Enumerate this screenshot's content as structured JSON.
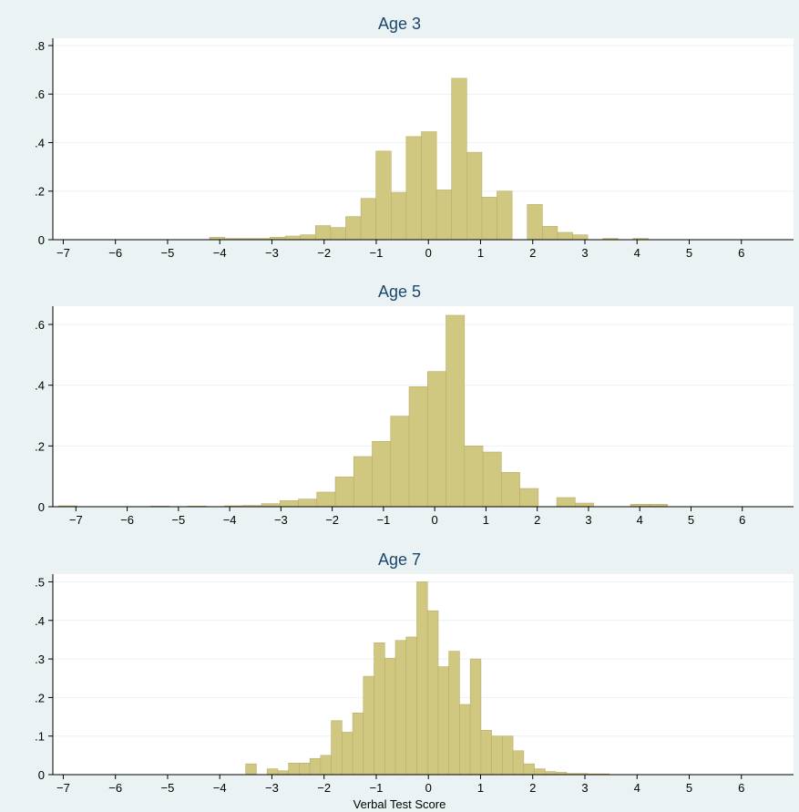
{
  "style": {
    "bar_fill": "#d0c881",
    "bar_stroke": "#b8ad67",
    "plot_bg": "#ffffff",
    "outer_bg": "#eaf2f3",
    "title_color": "#1a476f",
    "grid_color": "#eaf2f3"
  },
  "x_label": "Verbal Test Score",
  "chart_data": [
    {
      "type": "bar",
      "title": "Age 3",
      "xlim": [
        -7.2,
        7
      ],
      "ylim": [
        0,
        0.83
      ],
      "yticks": [
        0,
        0.2,
        0.4,
        0.6,
        0.8
      ],
      "ytick_labels": [
        "0",
        ".2",
        ".4",
        ".6",
        ".8"
      ],
      "xticks": [
        -7,
        -6,
        -5,
        -4,
        -3,
        -2,
        -1,
        0,
        1,
        2,
        3,
        4,
        5,
        6
      ],
      "xtick_labels": [
        "−7",
        "−6",
        "−5",
        "−4",
        "−3",
        "−2",
        "−1",
        "0",
        "1",
        "2",
        "3",
        "4",
        "5",
        "6"
      ],
      "bin_width": 0.29,
      "bins": [
        {
          "x": -4.05,
          "y": 0.01
        },
        {
          "x": -3.76,
          "y": 0.005
        },
        {
          "x": -3.47,
          "y": 0.005
        },
        {
          "x": -3.18,
          "y": 0.005
        },
        {
          "x": -2.89,
          "y": 0.01
        },
        {
          "x": -2.6,
          "y": 0.015
        },
        {
          "x": -2.31,
          "y": 0.02
        },
        {
          "x": -2.02,
          "y": 0.058
        },
        {
          "x": -1.73,
          "y": 0.05
        },
        {
          "x": -1.44,
          "y": 0.095
        },
        {
          "x": -1.15,
          "y": 0.17
        },
        {
          "x": -0.86,
          "y": 0.365
        },
        {
          "x": -0.57,
          "y": 0.195
        },
        {
          "x": -0.28,
          "y": 0.425
        },
        {
          "x": 0.01,
          "y": 0.445
        },
        {
          "x": 0.3,
          "y": 0.205
        },
        {
          "x": 0.59,
          "y": 0.665
        },
        {
          "x": 0.88,
          "y": 0.36
        },
        {
          "x": 1.17,
          "y": 0.175
        },
        {
          "x": 1.46,
          "y": 0.2
        },
        {
          "x": 2.04,
          "y": 0.145
        },
        {
          "x": 2.33,
          "y": 0.055
        },
        {
          "x": 2.62,
          "y": 0.03
        },
        {
          "x": 2.91,
          "y": 0.02
        },
        {
          "x": 3.49,
          "y": 0.005
        },
        {
          "x": 4.07,
          "y": 0.005
        }
      ]
    },
    {
      "type": "bar",
      "title": "Age 5",
      "xlim": [
        -7.45,
        7
      ],
      "ylim": [
        0,
        0.66
      ],
      "yticks": [
        0,
        0.2,
        0.4,
        0.6
      ],
      "ytick_labels": [
        "0",
        ".2",
        ".4",
        ".6"
      ],
      "xticks": [
        -7,
        -6,
        -5,
        -4,
        -3,
        -2,
        -1,
        0,
        1,
        2,
        3,
        4,
        5,
        6
      ],
      "xtick_labels": [
        "−7",
        "−6",
        "−5",
        "−4",
        "−3",
        "−2",
        "−1",
        "0",
        "1",
        "2",
        "3",
        "4",
        "5",
        "6"
      ],
      "bin_width": 0.36,
      "bins": [
        {
          "x": -7.16,
          "y": 0.003
        },
        {
          "x": -5.36,
          "y": 0.002
        },
        {
          "x": -4.64,
          "y": 0.002
        },
        {
          "x": -3.92,
          "y": 0.003
        },
        {
          "x": -3.56,
          "y": 0.004
        },
        {
          "x": -3.2,
          "y": 0.01
        },
        {
          "x": -2.84,
          "y": 0.02
        },
        {
          "x": -2.48,
          "y": 0.025
        },
        {
          "x": -2.12,
          "y": 0.048
        },
        {
          "x": -1.76,
          "y": 0.098
        },
        {
          "x": -1.4,
          "y": 0.165
        },
        {
          "x": -1.04,
          "y": 0.215
        },
        {
          "x": -0.68,
          "y": 0.298
        },
        {
          "x": -0.32,
          "y": 0.395
        },
        {
          "x": 0.04,
          "y": 0.445
        },
        {
          "x": 0.4,
          "y": 0.63
        },
        {
          "x": 0.76,
          "y": 0.2
        },
        {
          "x": 1.12,
          "y": 0.18
        },
        {
          "x": 1.48,
          "y": 0.113
        },
        {
          "x": 1.84,
          "y": 0.06
        },
        {
          "x": 2.56,
          "y": 0.03
        },
        {
          "x": 2.92,
          "y": 0.012
        },
        {
          "x": 4.0,
          "y": 0.008
        },
        {
          "x": 4.36,
          "y": 0.008
        }
      ]
    },
    {
      "type": "bar",
      "title": "Age 7",
      "xlim": [
        -7.2,
        7
      ],
      "ylim": [
        0,
        0.52
      ],
      "yticks": [
        0,
        0.1,
        0.2,
        0.3,
        0.4,
        0.5
      ],
      "ytick_labels": [
        "0",
        ".1",
        ".2",
        ".3",
        ".4",
        ".5"
      ],
      "xticks": [
        -7,
        -6,
        -5,
        -4,
        -3,
        -2,
        -1,
        0,
        1,
        2,
        3,
        4,
        5,
        6
      ],
      "xtick_labels": [
        "−7",
        "−6",
        "−5",
        "−4",
        "−3",
        "−2",
        "−1",
        "0",
        "1",
        "2",
        "3",
        "4",
        "5",
        "6"
      ],
      "bin_width": 0.205,
      "bins": [
        {
          "x": -3.4,
          "y": 0.028
        },
        {
          "x": -2.99,
          "y": 0.015
        },
        {
          "x": -2.785,
          "y": 0.01
        },
        {
          "x": -2.58,
          "y": 0.03
        },
        {
          "x": -2.375,
          "y": 0.03
        },
        {
          "x": -2.17,
          "y": 0.042
        },
        {
          "x": -1.965,
          "y": 0.05
        },
        {
          "x": -1.76,
          "y": 0.14
        },
        {
          "x": -1.555,
          "y": 0.11
        },
        {
          "x": -1.35,
          "y": 0.16
        },
        {
          "x": -1.145,
          "y": 0.255
        },
        {
          "x": -0.94,
          "y": 0.342
        },
        {
          "x": -0.735,
          "y": 0.302
        },
        {
          "x": -0.53,
          "y": 0.348
        },
        {
          "x": -0.325,
          "y": 0.357
        },
        {
          "x": -0.12,
          "y": 0.5
        },
        {
          "x": 0.085,
          "y": 0.425
        },
        {
          "x": 0.29,
          "y": 0.28
        },
        {
          "x": 0.495,
          "y": 0.32
        },
        {
          "x": 0.7,
          "y": 0.182
        },
        {
          "x": 0.905,
          "y": 0.3
        },
        {
          "x": 1.11,
          "y": 0.115
        },
        {
          "x": 1.315,
          "y": 0.1
        },
        {
          "x": 1.52,
          "y": 0.1
        },
        {
          "x": 1.725,
          "y": 0.062
        },
        {
          "x": 1.93,
          "y": 0.028
        },
        {
          "x": 2.135,
          "y": 0.015
        },
        {
          "x": 2.34,
          "y": 0.008
        },
        {
          "x": 2.545,
          "y": 0.006
        },
        {
          "x": 2.75,
          "y": 0.003
        },
        {
          "x": 2.955,
          "y": 0.003
        },
        {
          "x": 3.16,
          "y": 0.002
        },
        {
          "x": 3.365,
          "y": 0.002
        }
      ]
    }
  ]
}
